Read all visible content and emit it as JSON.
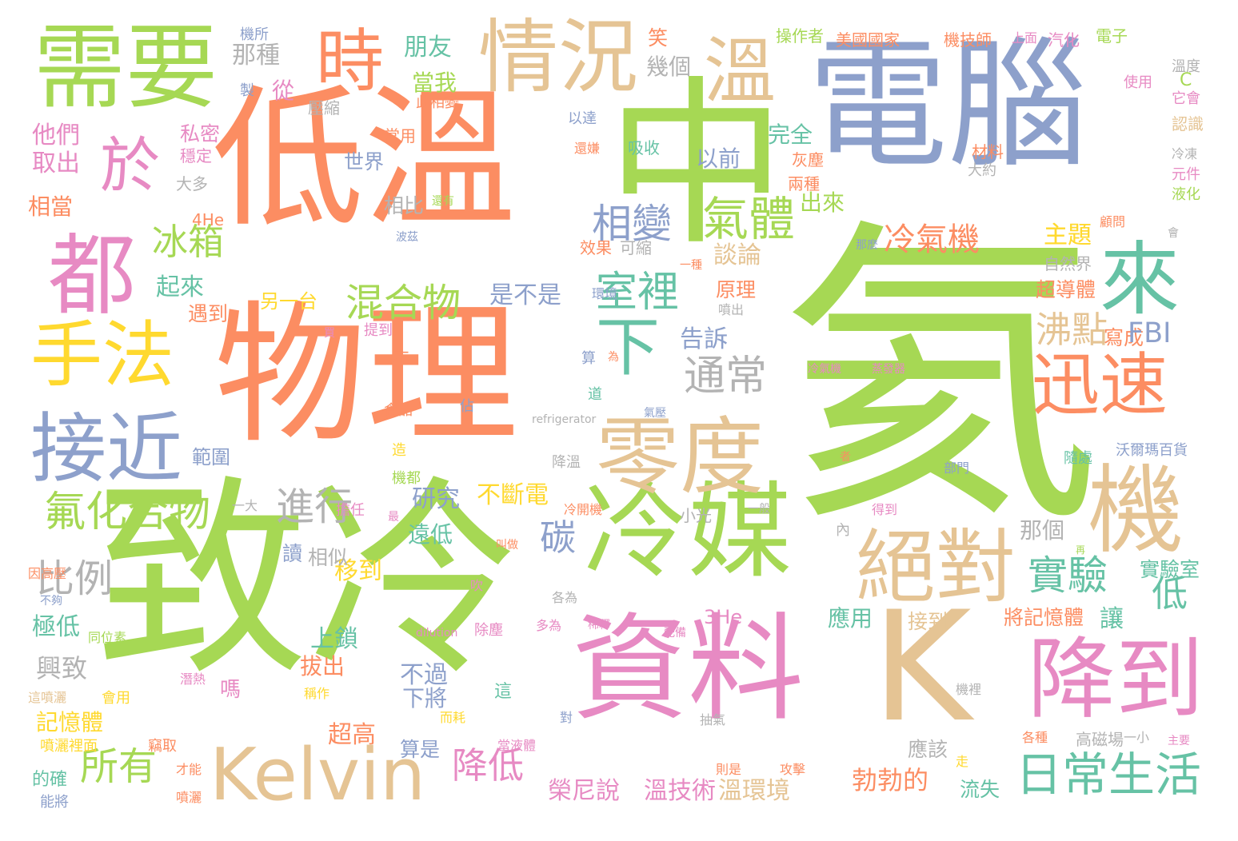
{
  "palette": {
    "green": "#a6d854",
    "orange": "#fc8d62",
    "blue": "#8da0cb",
    "pink": "#e78ac3",
    "tan": "#e5c494",
    "teal": "#66c2a5",
    "yellow": "#ffd92f",
    "gray": "#b3b3b3"
  },
  "words": [
    {
      "text": "氦",
      "color": "green"
    },
    {
      "text": "致冷",
      "color": "green"
    },
    {
      "text": "中",
      "color": "green"
    },
    {
      "text": "電腦",
      "color": "blue"
    },
    {
      "text": "物理",
      "color": "orange"
    },
    {
      "text": "低溫",
      "color": "orange"
    },
    {
      "text": "K",
      "color": "tan"
    },
    {
      "text": "資料",
      "color": "pink"
    },
    {
      "text": "冷媒",
      "color": "green"
    },
    {
      "text": "需要",
      "color": "green"
    },
    {
      "text": "Kelvin",
      "color": "tan"
    },
    {
      "text": "情況",
      "color": "tan"
    },
    {
      "text": "降到",
      "color": "pink"
    },
    {
      "text": "零度",
      "color": "tan"
    },
    {
      "text": "機",
      "color": "tan"
    },
    {
      "text": "迅速",
      "color": "orange"
    },
    {
      "text": "絕對",
      "color": "tan"
    },
    {
      "text": "接近",
      "color": "blue"
    },
    {
      "text": "手法",
      "color": "yellow"
    },
    {
      "text": "都",
      "color": "pink"
    },
    {
      "text": "來",
      "color": "teal"
    },
    {
      "text": "溫",
      "color": "tan"
    },
    {
      "text": "時",
      "color": "orange"
    },
    {
      "text": "於",
      "color": "pink"
    },
    {
      "text": "下",
      "color": "teal"
    },
    {
      "text": "日常生活",
      "color": "teal"
    },
    {
      "text": "氟化合物",
      "color": "green"
    },
    {
      "text": "氣體",
      "color": "green"
    },
    {
      "text": "相變",
      "color": "blue"
    },
    {
      "text": "室裡",
      "color": "teal"
    },
    {
      "text": "冷氣機",
      "color": "orange"
    },
    {
      "text": "通常",
      "color": "gray"
    },
    {
      "text": "混合物",
      "color": "green"
    },
    {
      "text": "實驗",
      "color": "teal"
    },
    {
      "text": "所有",
      "color": "green"
    },
    {
      "text": "比例",
      "color": "gray"
    },
    {
      "text": "進行",
      "color": "gray"
    },
    {
      "text": "降低",
      "color": "pink"
    },
    {
      "text": "冰箱",
      "color": "green"
    },
    {
      "text": "沸點",
      "color": "tan"
    },
    {
      "text": "低",
      "color": "teal"
    },
    {
      "text": "碳",
      "color": "blue"
    },
    {
      "text": "榮尼說",
      "color": "pink"
    },
    {
      "text": "溫技術",
      "color": "pink"
    },
    {
      "text": "溫環境",
      "color": "tan"
    },
    {
      "text": "勃勃的",
      "color": "orange"
    },
    {
      "text": "不斷電",
      "color": "yellow"
    },
    {
      "text": "研究",
      "color": "blue"
    },
    {
      "text": "談論",
      "color": "tan"
    },
    {
      "text": "主題",
      "color": "yellow"
    },
    {
      "text": "朋友",
      "color": "teal"
    },
    {
      "text": "那種",
      "color": "gray"
    },
    {
      "text": "興致",
      "color": "gray"
    },
    {
      "text": "移到",
      "color": "yellow"
    },
    {
      "text": "上鎖",
      "color": "teal"
    },
    {
      "text": "極低",
      "color": "teal"
    },
    {
      "text": "起來",
      "color": "teal"
    },
    {
      "text": "告訴",
      "color": "blue"
    },
    {
      "text": "超導體",
      "color": "orange"
    },
    {
      "text": "將記憶體",
      "color": "orange"
    },
    {
      "text": "讓",
      "color": "teal"
    },
    {
      "text": "實驗室",
      "color": "teal"
    },
    {
      "text": "超高",
      "color": "orange"
    },
    {
      "text": "記憶體",
      "color": "yellow"
    },
    {
      "text": "他們",
      "color": "pink"
    },
    {
      "text": "取出",
      "color": "pink"
    },
    {
      "text": "完全",
      "color": "teal"
    },
    {
      "text": "以前",
      "color": "blue"
    },
    {
      "text": "出來",
      "color": "green"
    },
    {
      "text": "另一台",
      "color": "yellow"
    },
    {
      "text": "是不是",
      "color": "blue"
    },
    {
      "text": "寫成",
      "color": "orange"
    },
    {
      "text": "應用",
      "color": "teal"
    },
    {
      "text": "接到",
      "color": "tan"
    },
    {
      "text": "流失",
      "color": "teal"
    },
    {
      "text": "應該",
      "color": "gray"
    },
    {
      "text": "算是",
      "color": "blue"
    },
    {
      "text": "不過",
      "color": "blue"
    },
    {
      "text": "下將",
      "color": "blue"
    },
    {
      "text": "拔出",
      "color": "orange"
    },
    {
      "text": "遠低",
      "color": "teal"
    },
    {
      "text": "讀",
      "color": "blue"
    },
    {
      "text": "相似",
      "color": "gray"
    },
    {
      "text": "那個",
      "color": "gray"
    },
    {
      "text": "範圍",
      "color": "blue"
    },
    {
      "text": "遇到",
      "color": "orange"
    },
    {
      "text": "原理",
      "color": "orange"
    },
    {
      "text": "主題",
      "color": "yellow"
    },
    {
      "text": "世界",
      "color": "blue"
    },
    {
      "text": "相比",
      "color": "gray"
    },
    {
      "text": "從",
      "color": "pink"
    },
    {
      "text": "當我",
      "color": "green"
    },
    {
      "text": "私密",
      "color": "pink"
    },
    {
      "text": "穩定",
      "color": "pink"
    },
    {
      "text": "相當",
      "color": "orange"
    },
    {
      "text": "大多",
      "color": "gray"
    },
    {
      "text": "4He",
      "color": "orange"
    },
    {
      "text": "3He",
      "color": "pink"
    },
    {
      "text": "FBI",
      "color": "blue"
    },
    {
      "text": "吸收",
      "color": "teal"
    },
    {
      "text": "常用",
      "color": "orange"
    },
    {
      "text": "壓縮",
      "color": "gray"
    },
    {
      "text": "幾個",
      "color": "gray"
    },
    {
      "text": "笑",
      "color": "orange"
    },
    {
      "text": "此相變",
      "color": "orange"
    },
    {
      "text": "以達",
      "color": "blue"
    },
    {
      "text": "還嫌",
      "color": "orange"
    },
    {
      "text": "灰塵",
      "color": "orange"
    },
    {
      "text": "兩種",
      "color": "orange"
    },
    {
      "text": "材料",
      "color": "orange"
    },
    {
      "text": "大約",
      "color": "gray"
    },
    {
      "text": "效果",
      "color": "orange"
    },
    {
      "text": "可縮",
      "color": "gray"
    },
    {
      "text": "一種",
      "color": "orange"
    },
    {
      "text": "噴出",
      "color": "gray"
    },
    {
      "text": "環境",
      "color": "blue"
    },
    {
      "text": "那麼",
      "color": "blue"
    },
    {
      "text": "顧問",
      "color": "orange"
    },
    {
      "text": "自然界",
      "color": "gray"
    },
    {
      "text": "操作者",
      "color": "green"
    },
    {
      "text": "美國國家",
      "color": "orange"
    },
    {
      "text": "機技師",
      "color": "orange"
    },
    {
      "text": "上面",
      "color": "pink"
    },
    {
      "text": "汽化",
      "color": "pink"
    },
    {
      "text": "電子",
      "color": "green"
    },
    {
      "text": "溫度",
      "color": "gray"
    },
    {
      "text": "它會",
      "color": "pink"
    },
    {
      "text": "認識",
      "color": "tan"
    },
    {
      "text": "冷凍",
      "color": "gray"
    },
    {
      "text": "元件",
      "color": "pink"
    },
    {
      "text": "液化",
      "color": "green"
    },
    {
      "text": "使用",
      "color": "pink"
    },
    {
      "text": "C",
      "color": "green"
    },
    {
      "text": "機所",
      "color": "blue"
    },
    {
      "text": "製",
      "color": "blue"
    },
    {
      "text": "提到",
      "color": "pink"
    },
    {
      "text": "食品",
      "color": "orange"
    },
    {
      "text": "佔",
      "color": "blue"
    },
    {
      "text": "refrigerator",
      "color": "gray"
    },
    {
      "text": "不",
      "color": "orange"
    },
    {
      "text": "造",
      "color": "yellow"
    },
    {
      "text": "機都",
      "color": "green"
    },
    {
      "text": "擔任",
      "color": "pink"
    },
    {
      "text": "冷開機",
      "color": "orange"
    },
    {
      "text": "小光",
      "color": "gray"
    },
    {
      "text": "內",
      "color": "gray"
    },
    {
      "text": "得到",
      "color": "pink"
    },
    {
      "text": "部門",
      "color": "blue"
    },
    {
      "text": "沃爾瑪百貨",
      "color": "blue"
    },
    {
      "text": "隨處",
      "color": "teal"
    },
    {
      "text": "降溫",
      "color": "gray"
    },
    {
      "text": "氣壓",
      "color": "blue"
    },
    {
      "text": "道",
      "color": "teal"
    },
    {
      "text": "算",
      "color": "blue"
    },
    {
      "text": "為",
      "color": "orange"
    },
    {
      "text": "各為",
      "color": "gray"
    },
    {
      "text": "吹",
      "color": "pink"
    },
    {
      "text": "多為",
      "color": "pink"
    },
    {
      "text": "稀釋",
      "color": "pink"
    },
    {
      "text": "同位素",
      "color": "green"
    },
    {
      "text": "dilution",
      "color": "pink"
    },
    {
      "text": "除塵",
      "color": "pink"
    },
    {
      "text": "不夠",
      "color": "blue"
    },
    {
      "text": "潛熱",
      "color": "pink"
    },
    {
      "text": "會用",
      "color": "yellow"
    },
    {
      "text": "這噴灑",
      "color": "tan"
    },
    {
      "text": "稱作",
      "color": "yellow"
    },
    {
      "text": "嗎",
      "color": "pink"
    },
    {
      "text": "這",
      "color": "teal"
    },
    {
      "text": "噴灑裡面",
      "color": "yellow"
    },
    {
      "text": "竊取",
      "color": "orange"
    },
    {
      "text": "而耗",
      "color": "yellow"
    },
    {
      "text": "當液體",
      "color": "pink"
    },
    {
      "text": "的確",
      "color": "teal"
    },
    {
      "text": "才能",
      "color": "orange"
    },
    {
      "text": "噴灑",
      "color": "orange"
    },
    {
      "text": "能將",
      "color": "blue"
    },
    {
      "text": "則是",
      "color": "orange"
    },
    {
      "text": "攻擊",
      "color": "orange"
    },
    {
      "text": "走",
      "color": "yellow"
    },
    {
      "text": "對",
      "color": "blue"
    },
    {
      "text": "抽氣",
      "color": "gray"
    },
    {
      "text": "機裡",
      "color": "gray"
    },
    {
      "text": "各種",
      "color": "orange"
    },
    {
      "text": "一小",
      "color": "gray"
    },
    {
      "text": "高磁場",
      "color": "gray"
    },
    {
      "text": "主要",
      "color": "pink"
    },
    {
      "text": "因高壓",
      "color": "orange"
    },
    {
      "text": "一大",
      "color": "gray"
    },
    {
      "text": "叫做",
      "color": "orange"
    },
    {
      "text": "配備",
      "color": "pink"
    },
    {
      "text": "再",
      "color": "green"
    },
    {
      "text": "冷氣機",
      "color": "pink"
    },
    {
      "text": "蒸發器",
      "color": "pink"
    },
    {
      "text": "波茲",
      "color": "blue"
    },
    {
      "text": "還有",
      "color": "green"
    },
    {
      "text": "買",
      "color": "pink"
    },
    {
      "text": "一般",
      "color": "gray"
    },
    {
      "text": "會",
      "color": "gray"
    },
    {
      "text": "最",
      "color": "pink"
    },
    {
      "text": "者",
      "color": "orange"
    }
  ]
}
